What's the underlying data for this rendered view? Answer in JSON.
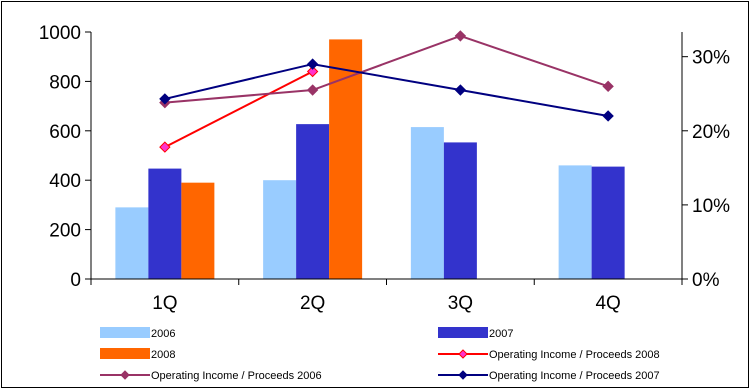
{
  "chart_data": {
    "type": "bar",
    "categories": [
      "1Q",
      "2Q",
      "3Q",
      "4Q"
    ],
    "ylim": [
      0,
      1000
    ],
    "yticks": [
      0,
      200,
      400,
      600,
      800,
      1000
    ],
    "y2lim": [
      0,
      0.3333
    ],
    "y2ticks": [
      "0%",
      "10%",
      "20%",
      "30%"
    ],
    "y2tick_values": [
      0,
      0.1,
      0.2,
      0.3
    ],
    "grid": false,
    "legend_position": "bottom",
    "series": [
      {
        "name": "2006",
        "kind": "bar",
        "axis": "left",
        "color": "#99ccff",
        "values": [
          290,
          400,
          615,
          460
        ]
      },
      {
        "name": "2007",
        "kind": "bar",
        "axis": "left",
        "color": "#3333cc",
        "values": [
          447,
          627,
          553,
          455
        ]
      },
      {
        "name": "2008",
        "kind": "bar",
        "axis": "left",
        "color": "#ff6600",
        "values": [
          390,
          970,
          null,
          null
        ]
      },
      {
        "name": "Operating Income / Proceeds 2008",
        "kind": "line",
        "axis": "right",
        "color": "#ff0000",
        "marker_color": "#ff33cc",
        "values": [
          0.178,
          0.28,
          null,
          null
        ]
      },
      {
        "name": "Operating Income / Proceeds 2006",
        "kind": "line",
        "axis": "right",
        "color": "#993366",
        "marker_color": "#993366",
        "values": [
          0.238,
          0.255,
          0.328,
          0.26
        ]
      },
      {
        "name": "Operating Income / Proceeds 2007",
        "kind": "line",
        "axis": "right",
        "color": "#000080",
        "marker_color": "#000080",
        "values": [
          0.243,
          0.29,
          0.255,
          0.22
        ]
      }
    ]
  }
}
